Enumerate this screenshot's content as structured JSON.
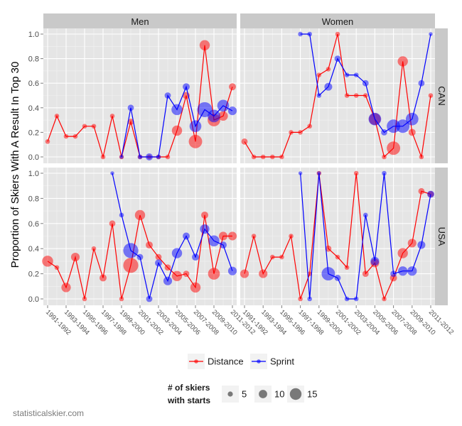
{
  "chart_data": {
    "type": "line",
    "ylabel": "Proportion of Skiers With A Result In Top 30",
    "xlabel": "",
    "ylim": [
      0,
      1
    ],
    "y_ticks": [
      "0.0",
      "0.2",
      "0.4",
      "0.6",
      "0.8",
      "1.0"
    ],
    "x_tick_labels": [
      "1991-1992",
      "1993-1994",
      "1995-1996",
      "1997-1998",
      "1999-2000",
      "2001-2002",
      "2003-2004",
      "2005-2006",
      "2007-2008",
      "2009-2010",
      "2011-2012"
    ],
    "x_tick_indices": [
      0,
      2,
      4,
      6,
      8,
      10,
      12,
      14,
      16,
      18,
      20
    ],
    "seasons": [
      "1991-1992",
      "1992-1993",
      "1993-1994",
      "1994-1995",
      "1995-1996",
      "1996-1997",
      "1997-1998",
      "1998-1999",
      "1999-2000",
      "2000-2001",
      "2001-2002",
      "2002-2003",
      "2003-2004",
      "2004-2005",
      "2005-2006",
      "2006-2007",
      "2007-2008",
      "2008-2009",
      "2009-2010",
      "2010-2011",
      "2011-2012"
    ],
    "col_facets": [
      "Men",
      "Women"
    ],
    "row_facets": [
      "CAN",
      "USA"
    ],
    "panels": [
      {
        "col": "Men",
        "row": "CAN",
        "series": [
          {
            "name": "Distance",
            "values": [
              0.125,
              0.333,
              0.167,
              0.167,
              0.25,
              0.25,
              0.0,
              0.333,
              0.0,
              0.286,
              0.0,
              0.0,
              0.0,
              0.0,
              0.214,
              0.5,
              0.125,
              0.909,
              0.3,
              0.333,
              0.571
            ],
            "sizes": [
              3,
              3,
              3,
              3,
              3,
              3,
              3,
              3,
              3,
              5,
              3,
              3,
              3,
              3,
              10,
              6,
              14,
              10,
              13,
              9,
              6
            ]
          },
          {
            "name": "Sprint",
            "values": [
              null,
              null,
              null,
              null,
              null,
              null,
              null,
              null,
              0.0,
              0.4,
              0.0,
              0.0,
              0.0,
              0.5,
              0.385,
              0.571,
              0.25,
              0.385,
              0.333,
              0.417,
              0.375
            ],
            "sizes": [
              null,
              null,
              null,
              null,
              null,
              null,
              null,
              null,
              2,
              5,
              3,
              6,
              3,
              5,
              11,
              6,
              12,
              16,
              13,
              12,
              8
            ]
          }
        ]
      },
      {
        "col": "Women",
        "row": "CAN",
        "series": [
          {
            "name": "Distance",
            "values": [
              0.125,
              0.0,
              0.0,
              0.0,
              0.0,
              0.2,
              0.2,
              0.25,
              0.667,
              0.714,
              1.0,
              0.5,
              0.5,
              0.5,
              0.308,
              0.0,
              0.071,
              0.778,
              0.2,
              0.0,
              0.5
            ],
            "sizes": [
              5,
              3,
              3,
              3,
              3,
              3,
              3,
              3,
              3,
              3,
              3,
              3,
              3,
              3,
              12,
              3,
              14,
              10,
              6,
              3,
              3
            ]
          },
          {
            "name": "Sprint",
            "values": [
              null,
              null,
              null,
              null,
              null,
              null,
              1.0,
              1.0,
              0.5,
              0.571,
              0.8,
              0.667,
              0.667,
              0.6,
              0.308,
              0.2,
              0.25,
              0.25,
              0.308,
              0.6,
              1.0
            ],
            "sizes": [
              null,
              null,
              null,
              null,
              null,
              null,
              3,
              3,
              3,
              7,
              5,
              3,
              3,
              5,
              13,
              5,
              14,
              14,
              13,
              5,
              2
            ]
          }
        ]
      },
      {
        "col": "Men",
        "row": "USA",
        "series": [
          {
            "name": "Distance",
            "values": [
              0.3,
              0.25,
              0.091,
              0.333,
              0.0,
              0.4,
              0.167,
              0.6,
              0.0,
              0.267,
              0.667,
              0.429,
              0.333,
              0.25,
              0.182,
              0.2,
              0.091,
              0.667,
              0.2,
              0.5,
              0.5
            ],
            "sizes": [
              11,
              3,
              9,
              8,
              3,
              3,
              6,
              5,
              3,
              16,
              10,
              6,
              5,
              5,
              10,
              5,
              10,
              6,
              12,
              8,
              8
            ]
          },
          {
            "name": "Sprint",
            "values": [
              null,
              null,
              null,
              null,
              null,
              null,
              null,
              1.0,
              0.667,
              0.385,
              0.333,
              0.0,
              0.286,
              0.143,
              0.364,
              0.5,
              0.333,
              0.556,
              0.462,
              0.429,
              0.222
            ],
            "sizes": [
              null,
              null,
              null,
              null,
              null,
              null,
              null,
              2,
              3,
              16,
              5,
              5,
              6,
              8,
              10,
              6,
              6,
              9,
              11,
              6,
              8
            ]
          }
        ]
      },
      {
        "col": "Women",
        "row": "USA",
        "series": [
          {
            "name": "Distance",
            "values": [
              0.2,
              0.5,
              0.2,
              0.333,
              0.333,
              0.5,
              0.0,
              0.2,
              1.0,
              0.4,
              0.333,
              0.25,
              1.0,
              0.2,
              0.286,
              0.0,
              0.167,
              0.364,
              0.444,
              0.857,
              0.833
            ],
            "sizes": [
              8,
              3,
              8,
              3,
              3,
              3,
              3,
              3,
              3,
              5,
              3,
              3,
              3,
              5,
              8,
              3,
              6,
              10,
              8,
              5,
              5
            ]
          },
          {
            "name": "Sprint",
            "values": [
              null,
              null,
              null,
              null,
              null,
              null,
              1.0,
              0.0,
              1.0,
              0.2,
              0.167,
              0.0,
              0.0,
              0.667,
              0.3,
              1.0,
              0.2,
              0.222,
              0.222,
              0.429,
              0.833
            ],
            "sizes": [
              null,
              null,
              null,
              null,
              null,
              2,
              2,
              3,
              2,
              14,
              5,
              3,
              3,
              3,
              8,
              3,
              5,
              9,
              9,
              7,
              6
            ]
          }
        ]
      }
    ],
    "legend": {
      "color_entries": [
        "Distance",
        "Sprint"
      ],
      "size_title_lines": [
        "# of skiers",
        "with starts"
      ],
      "size_entries": [
        5,
        10,
        15
      ],
      "placement": "bottom"
    },
    "colors": {
      "Distance": "#ff0000",
      "Sprint": "#0000ff"
    },
    "grid": true
  },
  "footer": {
    "credit": "statisticalskier.com"
  }
}
